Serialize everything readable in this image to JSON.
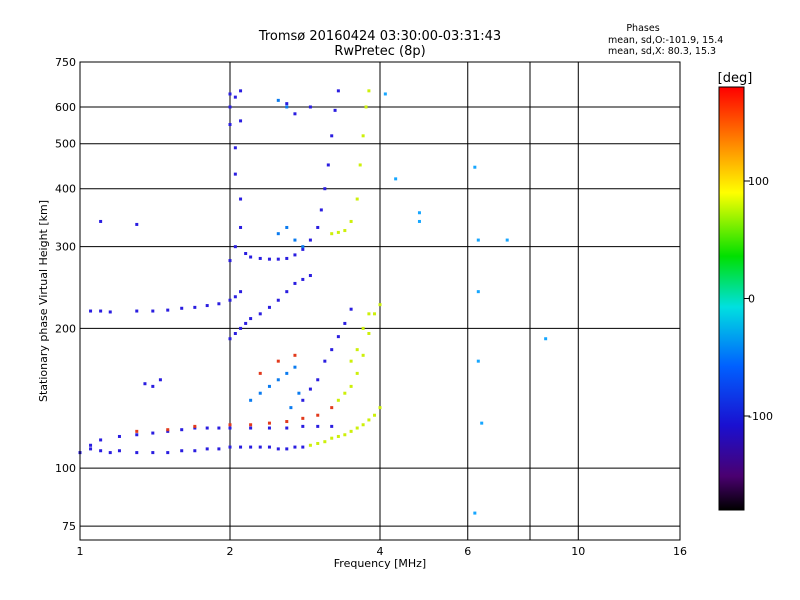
{
  "chart_data": {
    "type": "scatter",
    "title": "Tromsø 20160424 03:30:00-03:31:43",
    "subtitle": "RwPretec (8p)",
    "xlabel": "Frequency [MHz]",
    "ylabel": "Stationary phase Virtual Height [km]",
    "xscale": "log",
    "yscale": "log",
    "xlim": [
      1,
      16
    ],
    "ylim": [
      70,
      750
    ],
    "x_ticks": [
      1,
      2,
      4,
      6,
      8,
      10,
      16
    ],
    "x_tick_labels": [
      "1",
      "2",
      "4",
      "6",
      "10",
      "16"
    ],
    "x_labeled_ticks": [
      1,
      2,
      4,
      6,
      10,
      16
    ],
    "y_ticks": [
      75,
      100,
      200,
      300,
      400,
      500,
      600,
      750
    ],
    "y_tick_labels": [
      "75",
      "100",
      "200",
      "300",
      "400",
      "500",
      "600",
      "750"
    ],
    "grid": true,
    "legend": {
      "title": "Phases",
      "lines": [
        "mean, sd,O:-101.9, 15.4",
        "mean, sd,X:  80.3, 15.3"
      ],
      "position": "top-right"
    },
    "colorbar": {
      "label": "[deg]",
      "range": [
        -180,
        180
      ],
      "ticks": [
        100,
        0,
        -100
      ],
      "tick_labels": [
        "100",
        "0",
        "-100"
      ],
      "colormap": "rainbow (black-purple-blue-cyan-green-yellow-orange-red)"
    },
    "series": [
      {
        "color": "#2a1de0",
        "phase": -110,
        "points": [
          [
            1.0,
            108
          ],
          [
            1.05,
            110
          ],
          [
            1.1,
            109
          ],
          [
            1.15,
            108
          ],
          [
            1.2,
            109
          ],
          [
            1.3,
            108
          ],
          [
            1.4,
            108
          ],
          [
            1.5,
            108
          ],
          [
            1.6,
            109
          ],
          [
            1.7,
            109
          ],
          [
            1.8,
            110
          ],
          [
            1.9,
            110
          ],
          [
            2.0,
            111
          ],
          [
            2.1,
            111
          ],
          [
            2.2,
            111
          ],
          [
            2.3,
            111
          ],
          [
            2.4,
            111
          ],
          [
            2.5,
            110
          ],
          [
            2.6,
            110
          ],
          [
            2.7,
            111
          ],
          [
            2.8,
            111
          ],
          [
            1.05,
            112
          ],
          [
            1.1,
            115
          ],
          [
            1.2,
            117
          ],
          [
            1.3,
            118
          ],
          [
            1.4,
            119
          ],
          [
            1.5,
            120
          ],
          [
            1.6,
            121
          ],
          [
            1.7,
            122
          ],
          [
            1.8,
            122
          ],
          [
            1.9,
            122
          ],
          [
            2.0,
            122
          ],
          [
            2.2,
            122
          ],
          [
            2.4,
            122
          ],
          [
            2.6,
            122
          ],
          [
            2.8,
            123
          ],
          [
            3.0,
            123
          ],
          [
            3.2,
            123
          ],
          [
            1.05,
            218
          ],
          [
            1.1,
            218
          ],
          [
            1.15,
            217
          ],
          [
            1.3,
            218
          ],
          [
            1.4,
            218
          ],
          [
            1.5,
            219
          ],
          [
            1.6,
            221
          ],
          [
            1.7,
            222
          ],
          [
            1.8,
            224
          ],
          [
            1.9,
            226
          ],
          [
            2.0,
            230
          ],
          [
            2.05,
            234
          ],
          [
            2.1,
            240
          ],
          [
            2.0,
            280
          ],
          [
            2.05,
            300
          ],
          [
            2.1,
            330
          ],
          [
            2.1,
            380
          ],
          [
            2.05,
            430
          ],
          [
            2.05,
            490
          ],
          [
            2.0,
            550
          ],
          [
            2.0,
            600
          ],
          [
            2.05,
            630
          ],
          [
            2.1,
            650
          ],
          [
            2.0,
            640
          ],
          [
            2.1,
            560
          ],
          [
            2.15,
            290
          ],
          [
            2.2,
            285
          ],
          [
            2.3,
            283
          ],
          [
            2.4,
            282
          ],
          [
            2.5,
            282
          ],
          [
            2.6,
            283
          ],
          [
            2.7,
            288
          ],
          [
            2.8,
            296
          ],
          [
            2.9,
            310
          ],
          [
            3.0,
            330
          ],
          [
            3.05,
            360
          ],
          [
            3.1,
            400
          ],
          [
            3.15,
            450
          ],
          [
            3.2,
            520
          ],
          [
            3.25,
            590
          ],
          [
            3.3,
            650
          ],
          [
            2.0,
            190
          ],
          [
            2.05,
            195
          ],
          [
            2.1,
            200
          ],
          [
            2.15,
            205
          ],
          [
            2.2,
            210
          ],
          [
            2.3,
            215
          ],
          [
            2.4,
            222
          ],
          [
            2.5,
            230
          ],
          [
            2.6,
            240
          ],
          [
            2.7,
            250
          ],
          [
            2.8,
            255
          ],
          [
            2.9,
            260
          ],
          [
            2.8,
            140
          ],
          [
            2.9,
            148
          ],
          [
            3.0,
            155
          ],
          [
            3.1,
            170
          ],
          [
            3.2,
            180
          ],
          [
            3.3,
            192
          ],
          [
            3.4,
            205
          ],
          [
            3.5,
            220
          ],
          [
            1.35,
            152
          ],
          [
            1.4,
            150
          ],
          [
            1.45,
            155
          ],
          [
            1.1,
            340
          ],
          [
            1.3,
            335
          ],
          [
            2.6,
            610
          ],
          [
            2.7,
            580
          ],
          [
            2.9,
            600
          ]
        ]
      },
      {
        "color": "#0a7bf0",
        "phase": -75,
        "points": [
          [
            2.2,
            140
          ],
          [
            2.3,
            145
          ],
          [
            2.4,
            150
          ],
          [
            2.5,
            155
          ],
          [
            2.6,
            160
          ],
          [
            2.7,
            165
          ],
          [
            2.6,
            600
          ],
          [
            2.5,
            620
          ],
          [
            2.5,
            320
          ],
          [
            2.6,
            330
          ],
          [
            2.7,
            310
          ],
          [
            2.8,
            300
          ],
          [
            2.65,
            135
          ],
          [
            2.75,
            145
          ]
        ]
      },
      {
        "color": "#cdf00a",
        "phase": 90,
        "points": [
          [
            2.9,
            112
          ],
          [
            3.0,
            113
          ],
          [
            3.1,
            114
          ],
          [
            3.2,
            116
          ],
          [
            3.3,
            117
          ],
          [
            3.4,
            118
          ],
          [
            3.5,
            120
          ],
          [
            3.6,
            122
          ],
          [
            3.7,
            124
          ],
          [
            3.8,
            127
          ],
          [
            3.9,
            130
          ],
          [
            4.0,
            135
          ],
          [
            3.3,
            140
          ],
          [
            3.4,
            145
          ],
          [
            3.5,
            150
          ],
          [
            3.6,
            160
          ],
          [
            3.7,
            175
          ],
          [
            3.8,
            195
          ],
          [
            3.9,
            215
          ],
          [
            4.0,
            225
          ],
          [
            3.2,
            320
          ],
          [
            3.3,
            322
          ],
          [
            3.4,
            325
          ],
          [
            3.5,
            340
          ],
          [
            3.6,
            380
          ],
          [
            3.65,
            450
          ],
          [
            3.7,
            520
          ],
          [
            3.75,
            600
          ],
          [
            3.8,
            650
          ],
          [
            3.5,
            170
          ],
          [
            3.6,
            180
          ],
          [
            3.7,
            200
          ],
          [
            3.8,
            215
          ]
        ]
      },
      {
        "color": "#e23a1c",
        "phase": 160,
        "points": [
          [
            1.3,
            120
          ],
          [
            1.5,
            121
          ],
          [
            1.7,
            123
          ],
          [
            2.0,
            124
          ],
          [
            2.2,
            124
          ],
          [
            2.4,
            125
          ],
          [
            2.6,
            126
          ],
          [
            2.8,
            128
          ],
          [
            3.0,
            130
          ],
          [
            3.2,
            135
          ],
          [
            2.3,
            160
          ],
          [
            2.5,
            170
          ],
          [
            2.7,
            175
          ]
        ]
      },
      {
        "color": "#16a6ff",
        "phase": -50,
        "points": [
          [
            6.3,
            310
          ],
          [
            6.3,
            170
          ],
          [
            6.4,
            125
          ],
          [
            6.2,
            80
          ],
          [
            7.2,
            310
          ],
          [
            8.6,
            190
          ],
          [
            6.2,
            445
          ],
          [
            6.3,
            240
          ],
          [
            4.3,
            420
          ],
          [
            4.1,
            640
          ],
          [
            4.8,
            355
          ],
          [
            4.8,
            340
          ]
        ]
      }
    ]
  }
}
